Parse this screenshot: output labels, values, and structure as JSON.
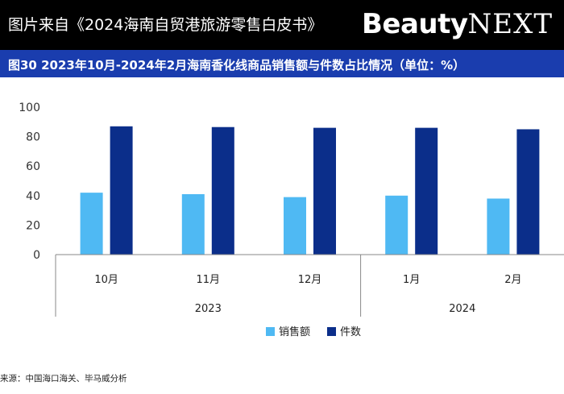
{
  "header": {
    "source_title": "图片来自《2024海南自贸港旅游零售白皮书》",
    "logo_bold": "Beauty",
    "logo_light": "NEXT"
  },
  "figure_title": "图30 2023年10月-2024年2月海南香化线商品销售额与件数占比情况（单位：%）",
  "footer": {
    "source": "来源：中国海口海关、毕马威分析"
  },
  "colors": {
    "sales": "#4fb9f3",
    "count": "#0b2e8a",
    "title_bar": "#1a3dae",
    "axis": "#888888"
  },
  "chart_data": {
    "type": "bar",
    "title": "图30 2023年10月-2024年2月海南香化线商品销售额与件数占比情况（单位：%）",
    "categories": [
      "10月",
      "11月",
      "12月",
      "1月",
      "2月"
    ],
    "groups": [
      {
        "label": "2023",
        "count": 3
      },
      {
        "label": "2024",
        "count": 2
      }
    ],
    "series": [
      {
        "name": "销售额",
        "values": [
          42,
          41,
          39,
          40,
          38
        ]
      },
      {
        "name": "件数",
        "values": [
          87,
          86.5,
          86,
          86,
          85
        ]
      }
    ],
    "ylim": [
      0,
      100
    ],
    "yticks": [
      0,
      20,
      40,
      60,
      80,
      100
    ],
    "xlabel": "",
    "ylabel": "",
    "legend": "bottom-center"
  }
}
